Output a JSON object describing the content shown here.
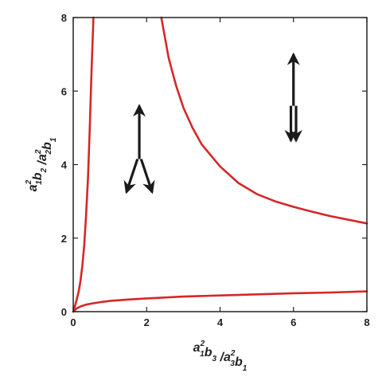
{
  "chart_data": {
    "type": "line",
    "title": "",
    "xlim": [
      0,
      8
    ],
    "ylim": [
      0,
      8
    ],
    "x_ticks": [
      0,
      2,
      4,
      6,
      8
    ],
    "y_ticks": [
      0,
      2,
      4,
      6,
      8
    ],
    "grid": false,
    "xlabel": {
      "parts": [
        {
          "text": "a",
          "sub": "1",
          "sup": "2"
        },
        {
          "text": "b",
          "sub": "3",
          "sup": ""
        },
        {
          "text": " /",
          "sub": "",
          "sup": ""
        },
        {
          "text": "a",
          "sub": "3",
          "sup": "2"
        },
        {
          "text": "b",
          "sub": "1",
          "sup": ""
        }
      ]
    },
    "ylabel": {
      "parts": [
        {
          "text": "a",
          "sub": "1",
          "sup": "2"
        },
        {
          "text": "b",
          "sub": "2",
          "sup": ""
        },
        {
          "text": " /",
          "sub": "",
          "sup": ""
        },
        {
          "text": "a",
          "sub": "2",
          "sup": "2"
        },
        {
          "text": "b",
          "sub": "1",
          "sup": ""
        }
      ]
    },
    "line_color": "#d62728",
    "arrow_color": "#1a1a1a",
    "series": [
      {
        "curve": "steep-left-branch",
        "x": [
          0.0,
          0.01,
          0.03,
          0.06,
          0.1,
          0.15,
          0.2,
          0.25,
          0.3,
          0.35,
          0.4,
          0.45,
          0.5,
          0.55
        ],
        "y": [
          0.0,
          0.03,
          0.1,
          0.2,
          0.35,
          0.55,
          0.85,
          1.25,
          1.8,
          2.6,
          3.6,
          5.0,
          6.6,
          8.0
        ]
      },
      {
        "curve": "lower-branch",
        "x": [
          0.0,
          0.05,
          0.1,
          0.2,
          0.35,
          0.5,
          0.75,
          1.0,
          1.5,
          2.0,
          3.0,
          4.0,
          5.0,
          6.0,
          7.0,
          8.0
        ],
        "y": [
          0.0,
          0.05,
          0.09,
          0.14,
          0.19,
          0.22,
          0.26,
          0.29,
          0.33,
          0.36,
          0.41,
          0.44,
          0.47,
          0.5,
          0.52,
          0.55
        ]
      },
      {
        "curve": "upper-right-branch",
        "x": [
          2.4,
          2.6,
          2.8,
          3.0,
          3.25,
          3.5,
          4.0,
          4.5,
          5.0,
          5.5,
          6.0,
          6.5,
          7.0,
          7.5,
          8.0
        ],
        "y": [
          8.0,
          6.9,
          6.15,
          5.55,
          5.0,
          4.55,
          3.95,
          3.5,
          3.2,
          3.0,
          2.85,
          2.72,
          2.6,
          2.5,
          2.4
        ]
      }
    ],
    "arrows": [
      {
        "name": "arrow-up-left-region",
        "from": [
          1.8,
          4.15
        ],
        "to": [
          1.8,
          5.6
        ]
      },
      {
        "name": "arrow-down-left-a",
        "from": [
          1.75,
          4.15
        ],
        "to": [
          1.45,
          3.25
        ]
      },
      {
        "name": "arrow-down-left-b",
        "from": [
          1.85,
          4.15
        ],
        "to": [
          2.15,
          3.25
        ]
      },
      {
        "name": "arrow-up-right-region",
        "from": [
          6.0,
          5.6
        ],
        "to": [
          6.0,
          7.0
        ]
      },
      {
        "name": "arrow-down-right-a",
        "from": [
          5.93,
          5.6
        ],
        "to": [
          5.93,
          4.65
        ]
      },
      {
        "name": "arrow-down-right-b",
        "from": [
          6.07,
          5.6
        ],
        "to": [
          6.07,
          4.65
        ]
      }
    ]
  }
}
